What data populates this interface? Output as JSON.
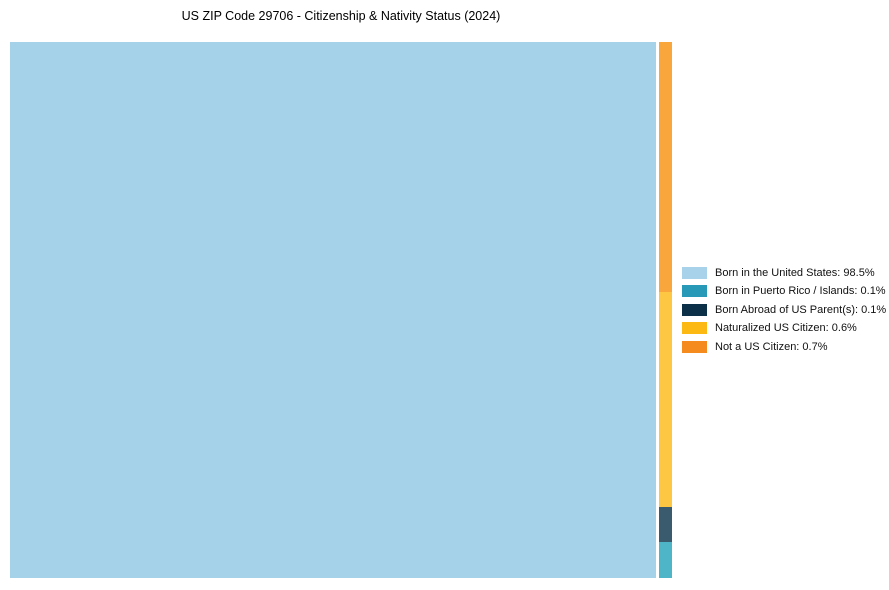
{
  "title": "US ZIP Code 29706 - Citizenship & Nativity Status (2024)",
  "chart_data": {
    "type": "treemap",
    "title": "US ZIP Code 29706 - Citizenship & Nativity Status (2024)",
    "unit": "percent",
    "legend_position": "right",
    "background_color": "#ffffff",
    "series": [
      {
        "id": "born-in-us",
        "label": "Born in the United States",
        "value": 98.5,
        "legend_text": "Born in the United States: 98.5%",
        "color": "#a8d2ea",
        "fill": "#a5d2e9"
      },
      {
        "id": "born-in-pr",
        "label": "Born in Puerto Rico / Islands",
        "value": 0.1,
        "legend_text": "Born in Puerto Rico / Islands: 0.1%",
        "color": "#2899b7",
        "fill": "#4eb4c8"
      },
      {
        "id": "born-abroad",
        "label": "Born Abroad of US Parent(s)",
        "value": 0.1,
        "legend_text": "Born Abroad of US Parent(s): 0.1%",
        "color": "#0d3049",
        "fill": "#3a5a6e"
      },
      {
        "id": "naturalized",
        "label": "Naturalized US Citizen",
        "value": 0.6,
        "legend_text": "Naturalized US Citizen: 0.6%",
        "color": "#fcb813",
        "fill": "#fdc643"
      },
      {
        "id": "not-citizen",
        "label": "Not a US Citizen",
        "value": 0.7,
        "legend_text": "Not a US Citizen: 0.7%",
        "color": "#f58b1e",
        "fill": "#f9a63c"
      }
    ],
    "main_cell": "born-in-us",
    "strip_order": [
      "not-citizen",
      "naturalized",
      "born-abroad",
      "born-in-pr"
    ]
  }
}
